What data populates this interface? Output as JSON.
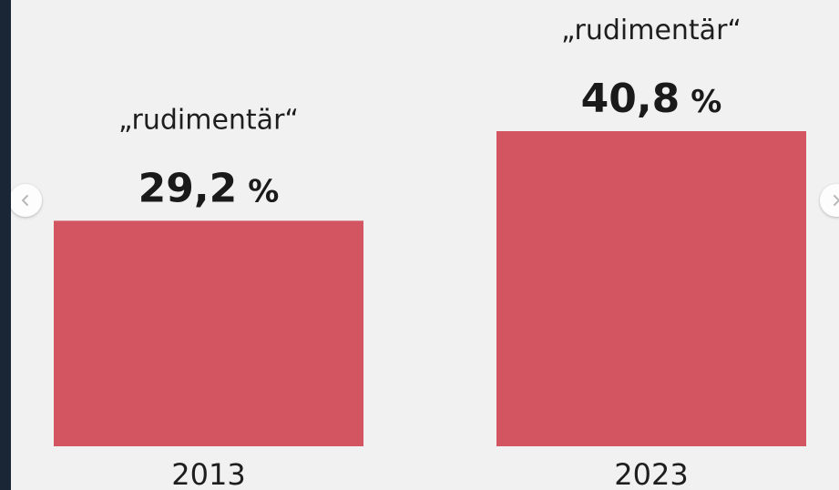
{
  "colors": {
    "bar": "#d45562",
    "background": "#f1f1f1",
    "frame": "#1c2838"
  },
  "navigation": {
    "prev_icon": "chevron-left-icon",
    "next_icon": "chevron-right-icon"
  },
  "chart_data": {
    "type": "bar",
    "categories": [
      "2013",
      "2023"
    ],
    "values": [
      29.2,
      40.8
    ],
    "value_labels": [
      "29,2",
      "40,8"
    ],
    "value_unit": "%",
    "bar_captions": [
      "„rudimentär“",
      "„rudimentär“"
    ],
    "title": "",
    "xlabel": "",
    "ylabel": "",
    "ylim": [
      0,
      40.8
    ],
    "grid": false,
    "legend": "none"
  }
}
